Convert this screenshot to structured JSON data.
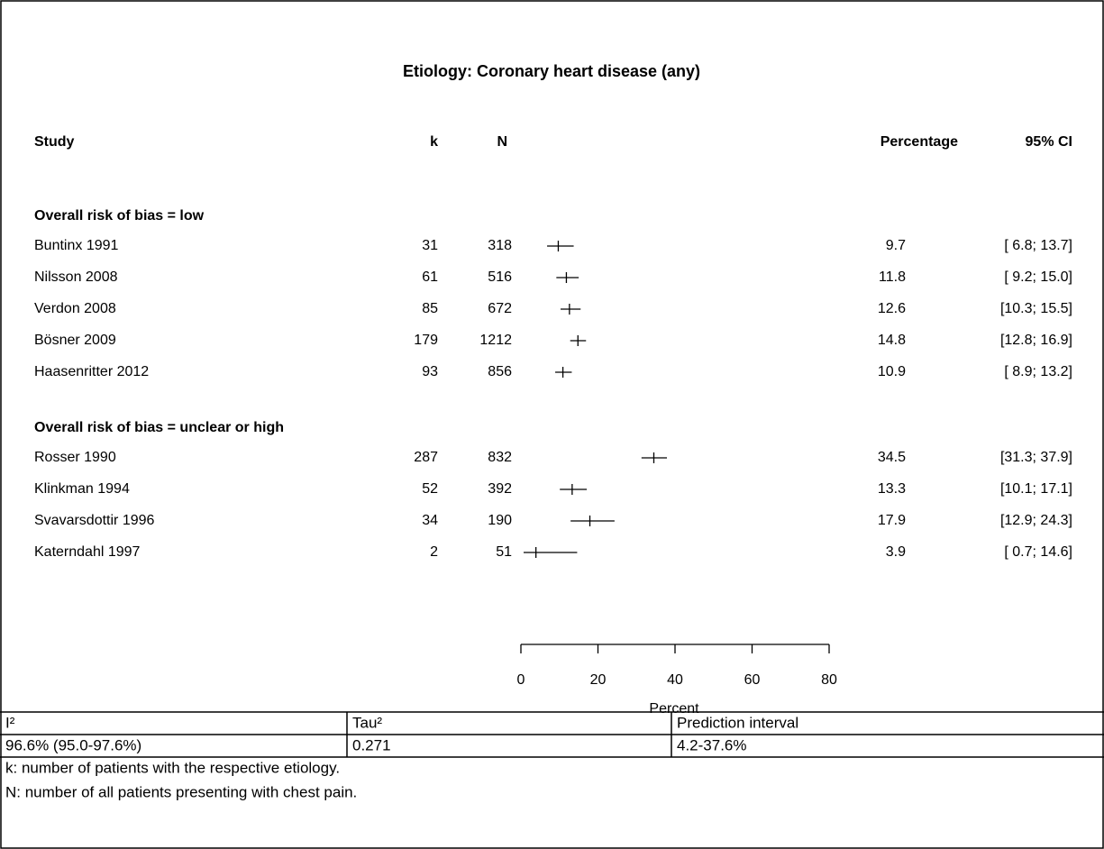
{
  "chart_data": {
    "type": "forest",
    "title": "Etiology: Coronary heart disease (any)",
    "columns": [
      "Study",
      "k",
      "N",
      "Percentage",
      "95% CI"
    ],
    "groups": [
      {
        "name": "Overall risk of bias = low",
        "studies": [
          {
            "name": "Buntinx 1991",
            "k": 31,
            "n": 318,
            "value": 9.7,
            "lower": 6.8,
            "upper": 13.7,
            "ci_label": "[ 6.8; 13.7]"
          },
          {
            "name": "Nilsson 2008",
            "k": 61,
            "n": 516,
            "value": 11.8,
            "lower": 9.2,
            "upper": 15,
            "ci_label": "[ 9.2; 15.0]"
          },
          {
            "name": "Verdon 2008",
            "k": 85,
            "n": 672,
            "value": 12.6,
            "lower": 10.3,
            "upper": 15.5,
            "ci_label": "[10.3; 15.5]"
          },
          {
            "name": "Bösner 2009",
            "k": 179,
            "n": 1212,
            "value": 14.8,
            "lower": 12.8,
            "upper": 16.9,
            "ci_label": "[12.8; 16.9]"
          },
          {
            "name": "Haasenritter 2012",
            "k": 93,
            "n": 856,
            "value": 10.9,
            "lower": 8.9,
            "upper": 13.2,
            "ci_label": "[ 8.9; 13.2]"
          }
        ]
      },
      {
        "name": "Overall risk of bias = unclear or high",
        "studies": [
          {
            "name": "Rosser 1990",
            "k": 287,
            "n": 832,
            "value": 34.5,
            "lower": 31.3,
            "upper": 37.9,
            "ci_label": "[31.3; 37.9]"
          },
          {
            "name": "Klinkman 1994",
            "k": 52,
            "n": 392,
            "value": 13.3,
            "lower": 10.1,
            "upper": 17.1,
            "ci_label": "[10.1; 17.1]"
          },
          {
            "name": "Svavarsdottir 1996",
            "k": 34,
            "n": 190,
            "value": 17.9,
            "lower": 12.9,
            "upper": 24.3,
            "ci_label": "[12.9; 24.3]"
          },
          {
            "name": "Katerndahl 1997",
            "k": 2,
            "n": 51,
            "value": 3.9,
            "lower": 0.7,
            "upper": 14.6,
            "ci_label": "[ 0.7; 14.6]"
          }
        ]
      }
    ],
    "xlim": [
      0,
      80
    ],
    "xticks": [
      0,
      20,
      40,
      60,
      80
    ],
    "xlabel": "Percent",
    "color": "#000000"
  },
  "table": {
    "header": [
      "I²",
      "Tau²",
      "Prediction interval"
    ],
    "row": [
      "96.6% (95.0-97.6%)",
      "0.271",
      "4.2-37.6%"
    ]
  },
  "footnotes": [
    "k: number of patients with the respective etiology.",
    "N: number of all patients presenting with chest pain."
  ]
}
